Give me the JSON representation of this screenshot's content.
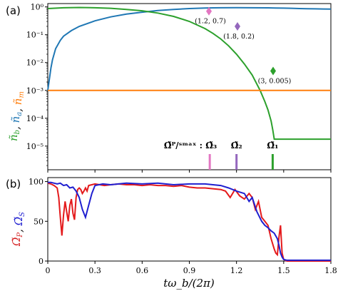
{
  "panel_labels": {
    "a": "(a)",
    "b": "(b)"
  },
  "chart_data": [
    {
      "type": "line",
      "panel": "(a)",
      "xlim": [
        0,
        1.8
      ],
      "ylim_exponent": [
        -6,
        0
      ],
      "yscale": "log",
      "yticks": [
        {
          "exp": 0,
          "label": "10⁰"
        },
        {
          "exp": -1,
          "label": "10⁻¹"
        },
        {
          "exp": -2,
          "label": "10⁻²"
        },
        {
          "exp": -3,
          "label": "10⁻³"
        },
        {
          "exp": -4,
          "label": "10⁻⁴"
        },
        {
          "exp": -5,
          "label": "10⁻⁵"
        }
      ],
      "ylabel_parts": [
        {
          "text": "ñ",
          "sub": "b",
          "color": "#2ca02c"
        },
        {
          "text": ", ",
          "sub": "",
          "color": "#000000"
        },
        {
          "text": "ñ",
          "sub": "a",
          "color": "#1f77b4"
        },
        {
          "text": ", ",
          "sub": "",
          "color": "#000000"
        },
        {
          "text": "ñ",
          "sub": "m",
          "color": "#ff7f0e"
        }
      ],
      "series": [
        {
          "color": "#1f77b4",
          "x": [
            0,
            0.01,
            0.02,
            0.03,
            0.05,
            0.08,
            0.1,
            0.15,
            0.2,
            0.3,
            0.4,
            0.5,
            0.6,
            0.7,
            0.8,
            0.9,
            1.0,
            1.05,
            1.1,
            1.2,
            1.3,
            1.4,
            1.45,
            1.5,
            1.55,
            1.6,
            1.65,
            1.7,
            1.75,
            1.8
          ],
          "y_exp": [
            -3,
            -2.6,
            -2.2,
            -1.9,
            -1.5,
            -1.2,
            -1.05,
            -0.85,
            -0.7,
            -0.5,
            -0.36,
            -0.26,
            -0.19,
            -0.13,
            -0.09,
            -0.06,
            -0.04,
            -0.035,
            -0.03,
            -0.028,
            -0.03,
            -0.035,
            -0.04,
            -0.045,
            -0.05,
            -0.06,
            -0.065,
            -0.07,
            -0.075,
            -0.08
          ]
        },
        {
          "color": "#2ca02c",
          "x": [
            0,
            0.1,
            0.2,
            0.3,
            0.4,
            0.5,
            0.6,
            0.7,
            0.8,
            0.9,
            1.0,
            1.05,
            1.1,
            1.15,
            1.2,
            1.25,
            1.3,
            1.35,
            1.38,
            1.4,
            1.42,
            1.43,
            1.44,
            1.8
          ],
          "y_exp": [
            -0.06,
            -0.03,
            -0.02,
            -0.03,
            -0.05,
            -0.09,
            -0.14,
            -0.22,
            -0.34,
            -0.52,
            -0.78,
            -0.95,
            -1.15,
            -1.4,
            -1.7,
            -2.05,
            -2.45,
            -3.0,
            -3.4,
            -3.7,
            -4.1,
            -4.4,
            -4.75,
            -4.75
          ]
        },
        {
          "color": "#ff7f0e",
          "x": [
            0,
            1.8
          ],
          "y_exp": [
            -3,
            -3
          ]
        }
      ],
      "markers": [
        {
          "x": 1.2,
          "y_exp": -0.155,
          "color": "#e377c2",
          "label": "(1.2, 0.7)"
        },
        {
          "x": 1.8,
          "y_exp": -0.699,
          "color": "#9467bd",
          "label": "(1.8, 0.2)"
        },
        {
          "x": 3,
          "y_exp": -2.301,
          "color": "#2ca02c",
          "label": "(3, 0.005)"
        }
      ],
      "freq_markers": [
        {
          "x": 1.03,
          "color": "#e377c2",
          "label": "Ω̃ᴾ/ˢᵐᵃˣ : Ω̃₃"
        },
        {
          "x": 1.2,
          "color": "#9467bd",
          "label": "Ω̃₂"
        },
        {
          "x": 1.43,
          "color": "#2ca02c",
          "label": "Ω̃₁"
        }
      ]
    },
    {
      "type": "line",
      "panel": "(b)",
      "xlim": [
        0,
        1.8
      ],
      "ylim": [
        0,
        105
      ],
      "xticks": [
        {
          "v": 0,
          "label": "0"
        },
        {
          "v": 0.3,
          "label": "0.3"
        },
        {
          "v": 0.6,
          "label": "0.6"
        },
        {
          "v": 0.9,
          "label": "0.9"
        },
        {
          "v": 1.2,
          "label": "1.2"
        },
        {
          "v": 1.5,
          "label": "1.5"
        },
        {
          "v": 1.8,
          "label": "1.8"
        }
      ],
      "yticks": [
        {
          "v": 0,
          "label": "0"
        },
        {
          "v": 50,
          "label": "50"
        },
        {
          "v": 100,
          "label": "100"
        }
      ],
      "xlabel": "tω_b/(2π)",
      "ylabel_parts": [
        {
          "text": "Ω̃",
          "sub": "P",
          "color": "#d62728"
        },
        {
          "text": ", ",
          "sub": "",
          "color": "#000000"
        },
        {
          "text": "Ω̃",
          "sub": "S",
          "color": "#1f1fd0"
        }
      ],
      "series": [
        {
          "color": "#e41a1c",
          "x": [
            0,
            0.02,
            0.04,
            0.06,
            0.07,
            0.08,
            0.09,
            0.1,
            0.11,
            0.12,
            0.13,
            0.14,
            0.15,
            0.16,
            0.17,
            0.18,
            0.19,
            0.2,
            0.21,
            0.22,
            0.23,
            0.24,
            0.25,
            0.26,
            0.28,
            0.3,
            0.33,
            0.36,
            0.4,
            0.45,
            0.5,
            0.55,
            0.6,
            0.65,
            0.7,
            0.75,
            0.8,
            0.85,
            0.9,
            0.95,
            1.0,
            1.05,
            1.1,
            1.13,
            1.16,
            1.19,
            1.22,
            1.25,
            1.28,
            1.3,
            1.32,
            1.34,
            1.36,
            1.38,
            1.4,
            1.42,
            1.44,
            1.45,
            1.46,
            1.47,
            1.48,
            1.49,
            1.5,
            1.51,
            1.52,
            1.55,
            1.6,
            1.7,
            1.8
          ],
          "y": [
            98,
            97,
            95,
            92,
            80,
            55,
            32,
            58,
            75,
            62,
            50,
            70,
            78,
            60,
            52,
            80,
            90,
            92,
            90,
            85,
            88,
            92,
            88,
            95,
            96,
            97,
            96,
            95,
            96,
            97,
            96,
            96,
            95,
            96,
            95,
            95,
            94,
            95,
            93,
            92,
            92,
            91,
            90,
            88,
            80,
            90,
            82,
            78,
            85,
            80,
            65,
            75,
            55,
            50,
            45,
            28,
            15,
            10,
            8,
            30,
            45,
            10,
            2,
            1,
            0,
            0,
            0,
            0,
            0
          ]
        },
        {
          "color": "#1f1fd0",
          "x": [
            0,
            0.02,
            0.04,
            0.06,
            0.08,
            0.1,
            0.12,
            0.14,
            0.16,
            0.18,
            0.2,
            0.22,
            0.24,
            0.26,
            0.28,
            0.3,
            0.35,
            0.4,
            0.5,
            0.6,
            0.7,
            0.8,
            0.9,
            1.0,
            1.05,
            1.1,
            1.15,
            1.2,
            1.25,
            1.28,
            1.3,
            1.33,
            1.36,
            1.38,
            1.4,
            1.42,
            1.44,
            1.46,
            1.47,
            1.48,
            1.49,
            1.5,
            1.52,
            1.55,
            1.6,
            1.7,
            1.8
          ],
          "y": [
            99,
            99,
            98,
            97,
            98,
            95,
            96,
            92,
            93,
            88,
            80,
            65,
            55,
            70,
            85,
            95,
            97,
            96,
            98,
            97,
            98,
            96,
            97,
            97,
            96,
            95,
            92,
            88,
            85,
            75,
            80,
            62,
            50,
            45,
            42,
            38,
            35,
            28,
            20,
            10,
            5,
            2,
            1,
            1,
            1,
            1,
            1
          ]
        }
      ]
    }
  ]
}
